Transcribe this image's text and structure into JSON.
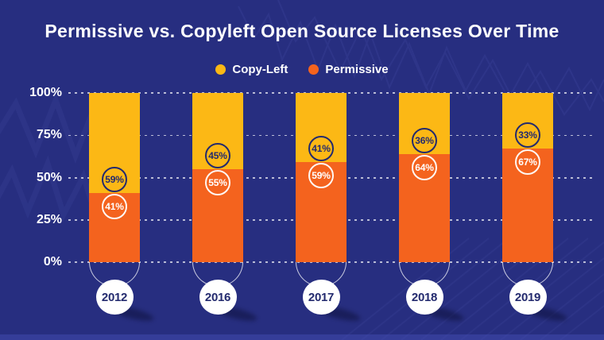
{
  "title": "Permissive vs. Copyleft Open Source Licenses Over Time",
  "legend": {
    "items": [
      {
        "label": "Copy-Left",
        "color": "#FCB815"
      },
      {
        "label": "Permissive",
        "color": "#F4631E"
      }
    ]
  },
  "y_axis": {
    "ticks": [
      "100%",
      "75%",
      "50%",
      "25%",
      "0%"
    ]
  },
  "chart_data": {
    "type": "bar",
    "stacked": true,
    "title": "Permissive vs. Copyleft Open Source Licenses Over Time",
    "categories": [
      "2012",
      "2016",
      "2017",
      "2018",
      "2019"
    ],
    "series": [
      {
        "name": "Copy-Left",
        "color": "#FCB815",
        "values": [
          59,
          45,
          41,
          36,
          33
        ]
      },
      {
        "name": "Permissive",
        "color": "#F4631E",
        "values": [
          41,
          55,
          59,
          64,
          67
        ]
      }
    ],
    "value_suffix": "%",
    "xlabel": "",
    "ylabel": "",
    "ylim": [
      0,
      100
    ],
    "y_ticks": [
      0,
      25,
      50,
      75,
      100
    ],
    "grid": "horizontal-dashed",
    "legend_position": "top-center"
  },
  "colors": {
    "background": "#272E80",
    "copyleft": "#FCB815",
    "permissive": "#F4631E",
    "text_light": "#FFFFFF",
    "text_dark": "#232A6E",
    "gridline": "rgba(255,255,255,0.8)"
  }
}
